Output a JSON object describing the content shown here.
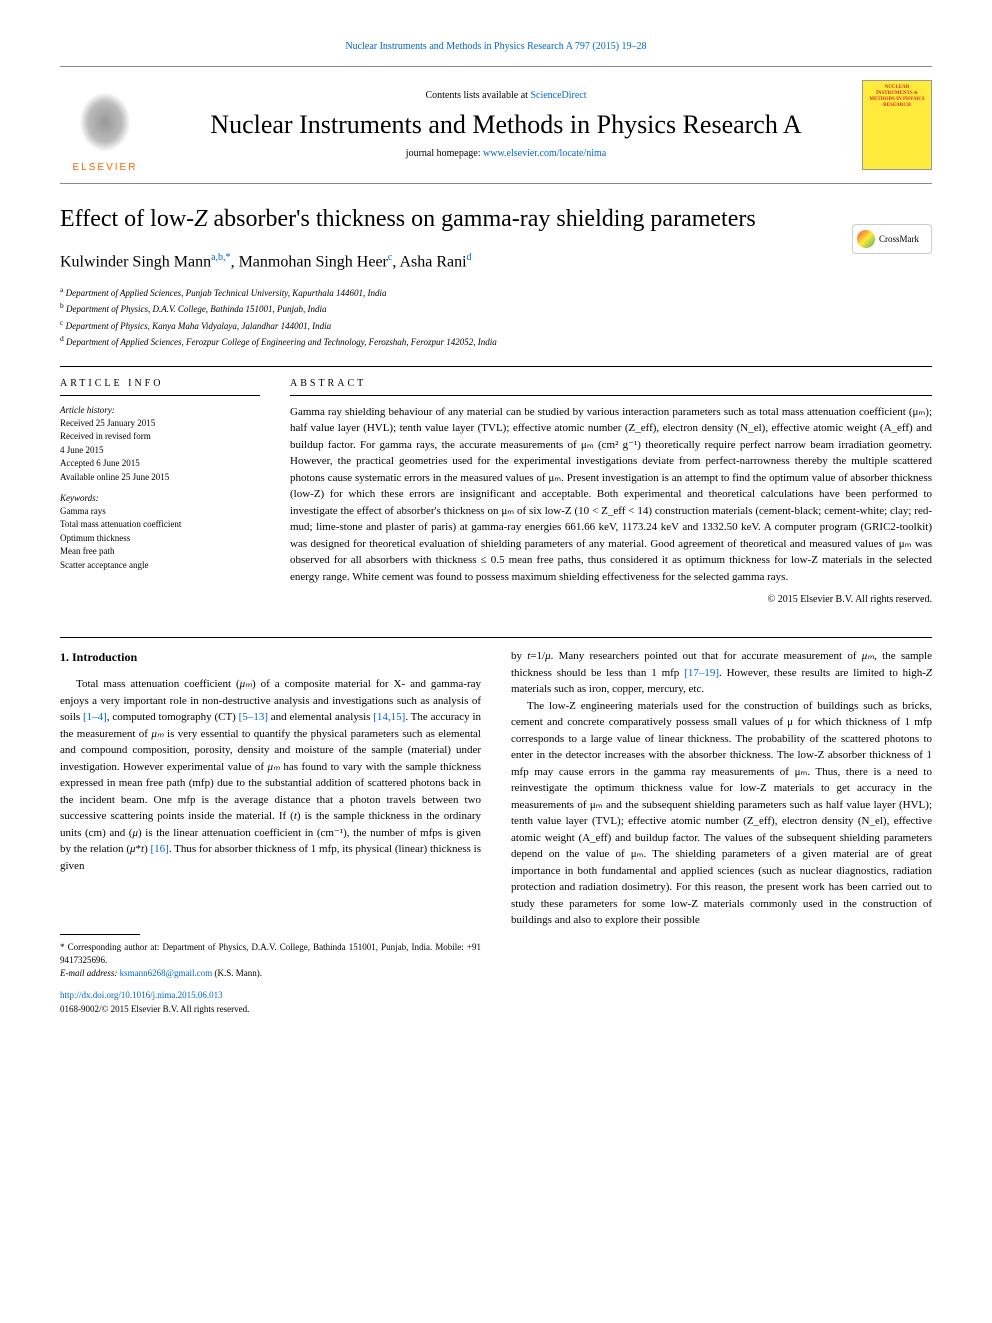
{
  "header": {
    "top_link": "Nuclear Instruments and Methods in Physics Research A 797 (2015) 19–28",
    "contents_prefix": "Contents lists available at ",
    "contents_link": "ScienceDirect",
    "journal_title": "Nuclear Instruments and Methods in Physics Research A",
    "homepage_prefix": "journal homepage: ",
    "homepage_link": "www.elsevier.com/locate/nima",
    "elsevier_label": "ELSEVIER",
    "cover_text": "NUCLEAR INSTRUMENTS & METHODS IN PHYSICS RESEARCH",
    "crossmark": "CrossMark"
  },
  "article": {
    "title": "Effect of low-Z absorber's thickness on gamma-ray shielding parameters",
    "authors_html": "Kulwinder Singh Mann",
    "author_sup1": "a,b,*",
    "author2": ", Manmohan Singh Heer",
    "author_sup2": "c",
    "author3": ", Asha Rani",
    "author_sup3": "d",
    "affiliations": {
      "a": "Department of Applied Sciences, Punjab Technical University, Kapurthala 144601, India",
      "b": "Department of Physics, D.A.V. College, Bathinda 151001, Punjab, India",
      "c": "Department of Physics, Kanya Maha Vidyalaya, Jalandhar 144001, India",
      "d": "Department of Applied Sciences, Ferozpur College of Engineering and Technology, Ferozshah, Ferozpur 142052, India"
    }
  },
  "info": {
    "heading": "ARTICLE INFO",
    "history_label": "Article history:",
    "history": "Received 25 January 2015\nReceived in revised form\n4 June 2015\nAccepted 6 June 2015\nAvailable online 25 June 2015",
    "keywords_label": "Keywords:",
    "keywords": "Gamma rays\nTotal mass attenuation coefficient\nOptimum thickness\nMean free path\nScatter acceptance angle"
  },
  "abstract": {
    "heading": "ABSTRACT",
    "text": "Gamma ray shielding behaviour of any material can be studied by various interaction parameters such as total mass attenuation coefficient (μₘ); half value layer (HVL); tenth value layer (TVL); effective atomic number (Z_eff), electron density (N_el), effective atomic weight (A_eff) and buildup factor. For gamma rays, the accurate measurements of μₘ (cm² g⁻¹) theoretically require perfect narrow beam irradiation geometry. However, the practical geometries used for the experimental investigations deviate from perfect-narrowness thereby the multiple scattered photons cause systematic errors in the measured values of μₘ. Present investigation is an attempt to find the optimum value of absorber thickness (low-Z) for which these errors are insignificant and acceptable. Both experimental and theoretical calculations have been performed to investigate the effect of absorber's thickness on μₘ of six low-Z (10 < Z_eff < 14) construction materials (cement-black; cement-white; clay; red-mud; lime-stone and plaster of paris) at gamma-ray energies 661.66 keV, 1173.24 keV and 1332.50 keV. A computer program (GRIC2-toolkit) was designed for theoretical evaluation of shielding parameters of any material. Good agreement of theoretical and measured values of μₘ was observed for all absorbers with thickness ≤ 0.5 mean free paths, thus considered it as optimum thickness for low-Z materials in the selected energy range. White cement was found to possess maximum shielding effectiveness for the selected gamma rays.",
    "copyright": "© 2015 Elsevier B.V. All rights reserved."
  },
  "body": {
    "section1_heading": "1.  Introduction",
    "col1_p1": "Total mass attenuation coefficient (μₘ) of a composite material for X- and gamma-ray enjoys a very important role in non-destructive analysis and investigations such as analysis of soils [1–4], computed tomography (CT) [5–13] and elemental analysis [14,15]. The accuracy in the measurement of μₘ is very essential to quantify the physical parameters such as elemental and compound composition, porosity, density and moisture of the sample (material) under investigation. However experimental value of μₘ has found to vary with the sample thickness expressed in mean free path (mfp) due to the substantial addition of scattered photons back in the incident beam. One mfp is the average distance that a photon travels between two successive scattering points inside the material. If (t) is the sample thickness in the ordinary units (cm) and (μ) is the linear attenuation coefficient in (cm⁻¹), the number of mfps is given by the relation (μ*t) [16]. Thus for absorber thickness of 1 mfp, its physical (linear) thickness is given",
    "col2_p1": "by t=1/μ. Many researchers pointed out that for accurate measurement of μₘ, the sample thickness should be less than 1 mfp [17–19]. However, these results are limited to high-Z materials such as iron, copper, mercury, etc.",
    "col2_p2": "The low-Z engineering materials used for the construction of buildings such as bricks, cement and concrete comparatively possess small values of μ for which thickness of 1 mfp corresponds to a large value of linear thickness. The probability of the scattered photons to enter in the detector increases with the absorber thickness. The low-Z absorber thickness of 1 mfp may cause errors in the gamma ray measurements of μₘ. Thus, there is a need to reinvestigate the optimum thickness value for low-Z materials to get accuracy in the measurements of μₘ and the subsequent shielding parameters such as half value layer (HVL); tenth value layer (TVL); effective atomic number (Z_eff), electron density (N_el), effective atomic weight (A_eff) and buildup factor. The values of the subsequent shielding parameters depend on the value of μₘ. The shielding parameters of a given material are of great importance in both fundamental and applied sciences (such as nuclear diagnostics, radiation protection and radiation dosimetry). For this reason, the present work has been carried out to study these parameters for some low-Z materials commonly used in the construction of buildings and also to explore their possible"
  },
  "footnote": {
    "corresponding": "* Corresponding author at: Department of Physics, D.A.V. College, Bathinda 151001, Punjab, India. Mobile: +91 9417325696.",
    "email_label": "E-mail address: ",
    "email": "ksmann6268@gmail.com",
    "email_suffix": " (K.S. Mann).",
    "doi": "http://dx.doi.org/10.1016/j.nima.2015.06.013",
    "issn": "0168-9002/© 2015 Elsevier B.V. All rights reserved."
  },
  "refs": {
    "r1_4": "[1–4]",
    "r5_13": "[5–13]",
    "r14_15": "[14,15]",
    "r16": "[16]",
    "r17_19": "[17–19]"
  }
}
